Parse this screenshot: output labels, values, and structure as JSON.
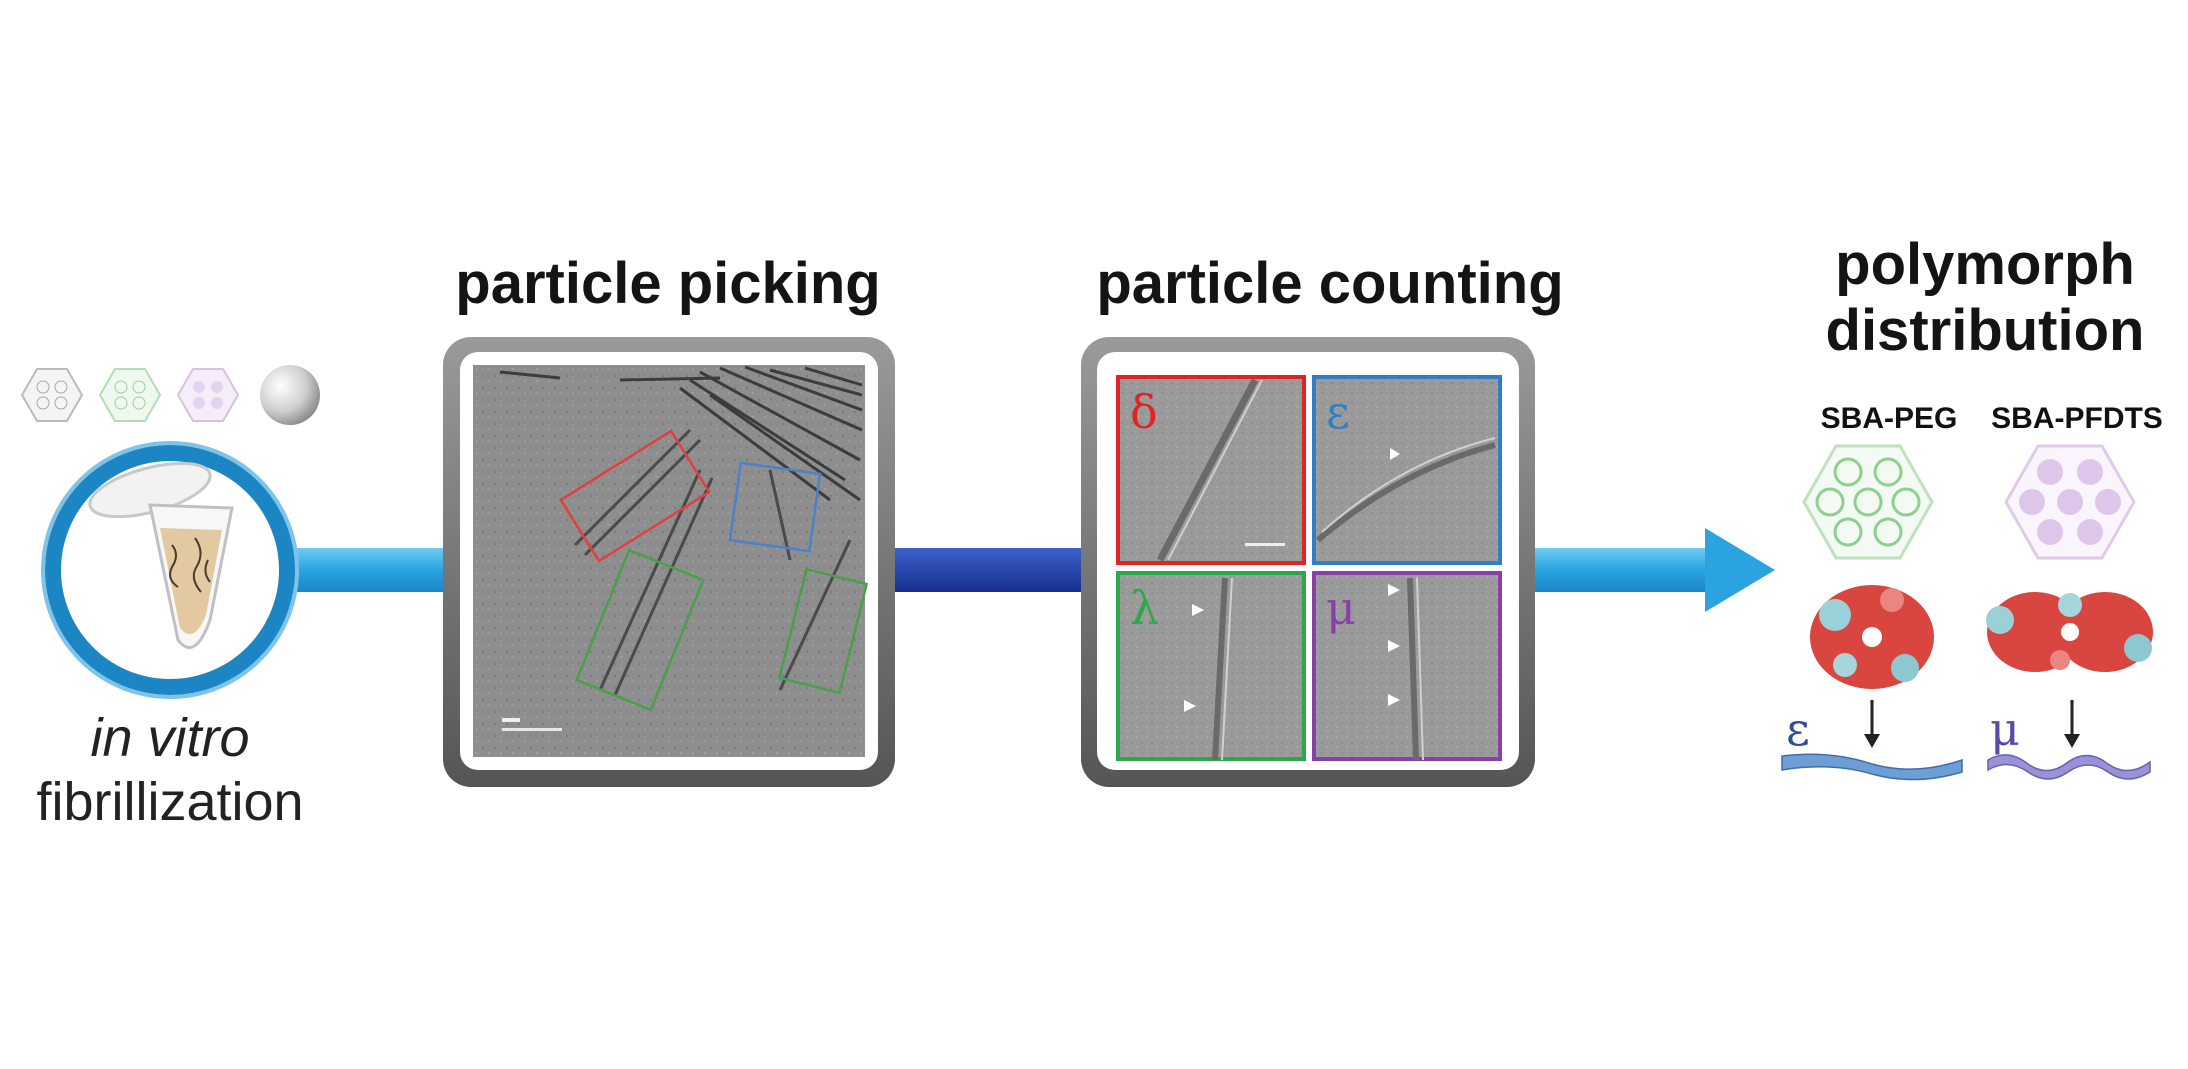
{
  "stages": {
    "fibrillization": {
      "label_italic": "in vitro",
      "label": "fibrillization"
    },
    "picking": {
      "title": "particle picking"
    },
    "counting": {
      "title": "particle counting",
      "panels": [
        {
          "symbol": "δ",
          "color": "#e02424"
        },
        {
          "symbol": "ε",
          "color": "#2f7fc8"
        },
        {
          "symbol": "λ",
          "color": "#2aa84a"
        },
        {
          "symbol": "μ",
          "color": "#8a3fa8"
        }
      ]
    },
    "distribution": {
      "title_line1": "polymorph",
      "title_line2": "distribution",
      "materials": [
        {
          "name": "SBA-PEG",
          "polymorph": "ε",
          "color": "#8fd08f"
        },
        {
          "name": "SBA-PFDTS",
          "polymorph": "μ",
          "color": "#c9a6dc"
        }
      ]
    }
  },
  "colors": {
    "arrow_light": "#2aa3e0",
    "arrow_dark": "#1f3fa8",
    "ring": "#1c86c4",
    "frame": "#6f6f6f",
    "micrograph": "#8c8c8c"
  },
  "icons": [
    "hexagon-gray-icon",
    "hexagon-green-icon",
    "hexagon-purple-icon",
    "silica-sphere-icon",
    "eppendorf-tube-icon",
    "arrow-right-icon"
  ]
}
